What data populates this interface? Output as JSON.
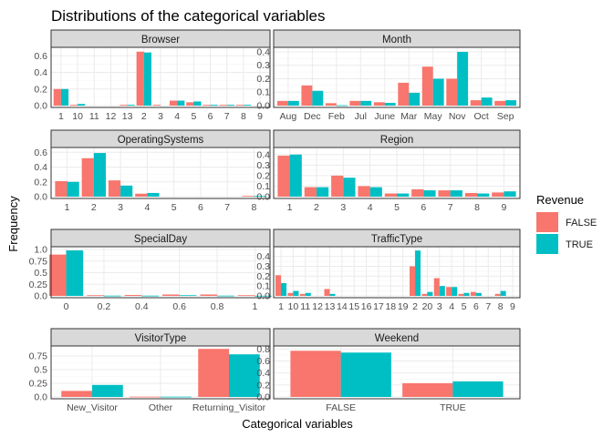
{
  "title": "Distributions of the categorical variables",
  "xlabel": "Categorical variables",
  "ylabel": "Frequency",
  "legend": {
    "title": "Revenue",
    "placement": "right",
    "entries": [
      {
        "label": "FALSE",
        "color": "#F8766D"
      },
      {
        "label": "TRUE",
        "color": "#00BFC4"
      }
    ]
  },
  "chart_data": [
    {
      "type": "bar",
      "facet": "Browser",
      "categories": [
        "1",
        "10",
        "11",
        "12",
        "13",
        "2",
        "3",
        "4",
        "5",
        "6",
        "7",
        "8",
        "9"
      ],
      "yticks": [
        0.0,
        0.2,
        0.4,
        0.6
      ],
      "ylim": [
        0,
        0.68
      ],
      "series": [
        {
          "name": "FALSE",
          "values": [
            0.2,
            0.01,
            0.0,
            0.0,
            0.01,
            0.65,
            0.01,
            0.06,
            0.04,
            0.01,
            0.01,
            0.01,
            0.0
          ]
        },
        {
          "name": "TRUE",
          "values": [
            0.2,
            0.02,
            0.0,
            0.0,
            0.01,
            0.64,
            0.0,
            0.06,
            0.05,
            0.01,
            0.01,
            0.01,
            0.0
          ]
        }
      ]
    },
    {
      "type": "bar",
      "facet": "Month",
      "categories": [
        "Aug",
        "Dec",
        "Feb",
        "Jul",
        "June",
        "Mar",
        "May",
        "Nov",
        "Oct",
        "Sep"
      ],
      "yticks": [
        0.0,
        0.1,
        0.2,
        0.3,
        0.4
      ],
      "ylim": [
        0,
        0.42
      ],
      "series": [
        {
          "name": "FALSE",
          "values": [
            0.035,
            0.15,
            0.018,
            0.035,
            0.025,
            0.17,
            0.29,
            0.2,
            0.04,
            0.035
          ]
        },
        {
          "name": "TRUE",
          "values": [
            0.035,
            0.11,
            0.003,
            0.035,
            0.02,
            0.095,
            0.2,
            0.4,
            0.06,
            0.04
          ]
        }
      ]
    },
    {
      "type": "bar",
      "facet": "OperatingSystems",
      "categories": [
        "1",
        "2",
        "3",
        "4",
        "5",
        "6",
        "7",
        "8"
      ],
      "yticks": [
        0.0,
        0.2,
        0.4,
        0.6
      ],
      "ylim": [
        0,
        0.64
      ],
      "series": [
        {
          "name": "FALSE",
          "values": [
            0.21,
            0.52,
            0.22,
            0.04,
            0.0,
            0.0,
            0.0,
            0.01
          ]
        },
        {
          "name": "TRUE",
          "values": [
            0.2,
            0.59,
            0.15,
            0.05,
            0.0,
            0.0,
            0.0,
            0.01
          ]
        }
      ]
    },
    {
      "type": "bar",
      "facet": "Region",
      "categories": [
        "1",
        "2",
        "3",
        "4",
        "5",
        "6",
        "7",
        "8",
        "9"
      ],
      "yticks": [
        0.0,
        0.1,
        0.2,
        0.3,
        0.4
      ],
      "ylim": [
        0,
        0.45
      ],
      "series": [
        {
          "name": "FALSE",
          "values": [
            0.39,
            0.09,
            0.2,
            0.1,
            0.03,
            0.07,
            0.06,
            0.035,
            0.04
          ]
        },
        {
          "name": "TRUE",
          "values": [
            0.4,
            0.09,
            0.18,
            0.09,
            0.03,
            0.06,
            0.06,
            0.03,
            0.05
          ]
        }
      ]
    },
    {
      "type": "bar",
      "facet": "SpecialDay",
      "categories": [
        "0",
        "0.2",
        "0.4",
        "0.6",
        "0.8",
        "1"
      ],
      "x": [
        0,
        0.2,
        0.4,
        0.6,
        0.8,
        1.0
      ],
      "yticks": [
        0.0,
        0.25,
        0.5,
        0.75,
        1.0
      ],
      "ylim": [
        0,
        1.02
      ],
      "series": [
        {
          "name": "FALSE",
          "values": [
            0.89,
            0.015,
            0.02,
            0.03,
            0.03,
            0.015
          ]
        },
        {
          "name": "TRUE",
          "values": [
            0.98,
            0.005,
            0.005,
            0.015,
            0.005,
            0.003
          ]
        }
      ]
    },
    {
      "type": "bar",
      "facet": "TrafficType",
      "categories": [
        "1",
        "10",
        "11",
        "12",
        "13",
        "14",
        "15",
        "16",
        "17",
        "18",
        "19",
        "2",
        "20",
        "3",
        "4",
        "5",
        "6",
        "7",
        "8",
        "9"
      ],
      "yticks": [
        0.0,
        0.1,
        0.2,
        0.3,
        0.4
      ],
      "ylim": [
        0,
        0.48
      ],
      "series": [
        {
          "name": "FALSE",
          "values": [
            0.21,
            0.03,
            0.02,
            0.0,
            0.07,
            0.0,
            0.0,
            0.0,
            0.0,
            0.0,
            0.0,
            0.3,
            0.02,
            0.18,
            0.09,
            0.02,
            0.04,
            0.0,
            0.02,
            0.0
          ]
        },
        {
          "name": "TRUE",
          "values": [
            0.13,
            0.05,
            0.03,
            0.0,
            0.02,
            0.0,
            0.0,
            0.0,
            0.0,
            0.0,
            0.0,
            0.46,
            0.04,
            0.1,
            0.09,
            0.03,
            0.03,
            0.0,
            0.05,
            0.0
          ]
        }
      ]
    },
    {
      "type": "bar",
      "facet": "VisitorType",
      "categories": [
        "New_Visitor",
        "Other",
        "Returning_Visitor"
      ],
      "yticks": [
        0.0,
        0.25,
        0.5,
        0.75
      ],
      "ylim": [
        0,
        0.9
      ],
      "series": [
        {
          "name": "FALSE",
          "values": [
            0.11,
            0.005,
            0.88
          ]
        },
        {
          "name": "TRUE",
          "values": [
            0.22,
            0.005,
            0.78
          ]
        }
      ]
    },
    {
      "type": "bar",
      "facet": "Weekend",
      "categories": [
        "FALSE",
        "TRUE"
      ],
      "yticks": [
        0.0,
        0.2,
        0.4,
        0.6,
        0.8
      ],
      "ylim": [
        0,
        0.82
      ],
      "series": [
        {
          "name": "FALSE",
          "values": [
            0.77,
            0.23
          ]
        },
        {
          "name": "TRUE",
          "values": [
            0.74,
            0.26
          ]
        }
      ]
    }
  ]
}
